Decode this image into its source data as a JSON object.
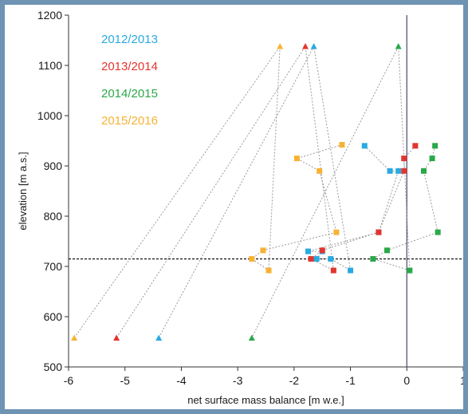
{
  "chart_data": {
    "type": "line",
    "title": "",
    "xlabel": "net surface mass balance [m w.e.]",
    "ylabel": "elevation [m a.s.]",
    "xlim": [
      -6,
      1
    ],
    "ylim": [
      500,
      1200
    ],
    "xticks": [
      -6,
      -5,
      -4,
      -3,
      -2,
      -1,
      0,
      1
    ],
    "yticks": [
      500,
      600,
      700,
      800,
      900,
      1000,
      1100,
      1200
    ],
    "xtick_labels": [
      "-6",
      "-5",
      "-4",
      "-3",
      "-2",
      "-1",
      "0",
      "1"
    ],
    "ytick_labels": [
      "500",
      "600",
      "700",
      "800",
      "900",
      "1000",
      "1100",
      "1200"
    ],
    "grid": false,
    "legend_position": "top-left",
    "reference_lines": [
      {
        "orientation": "vertical",
        "value": 0,
        "style": "solid",
        "color": "#555577"
      },
      {
        "orientation": "horizontal",
        "value": 715,
        "style": "dashed",
        "color": "#222222"
      }
    ],
    "series": [
      {
        "name": "2012/2013",
        "color": "#29aae1",
        "points": [
          {
            "x": -0.75,
            "y": 940,
            "marker": "square"
          },
          {
            "x": -0.3,
            "y": 890,
            "marker": "square"
          },
          {
            "x": -0.15,
            "y": 890,
            "marker": "square"
          },
          {
            "x": -0.5,
            "y": 768,
            "marker": "square"
          },
          {
            "x": -1.75,
            "y": 730,
            "marker": "square"
          },
          {
            "x": -1.5,
            "y": 730,
            "marker": "square"
          },
          {
            "x": -1.6,
            "y": 715,
            "marker": "square"
          },
          {
            "x": -1.35,
            "y": 715,
            "marker": "square"
          },
          {
            "x": -1.0,
            "y": 692,
            "marker": "square"
          },
          {
            "x": -1.65,
            "y": 1138,
            "marker": "triangle"
          },
          {
            "x": -4.4,
            "y": 558,
            "marker": "triangle"
          }
        ]
      },
      {
        "name": "2013/2014",
        "color": "#e2352f",
        "points": [
          {
            "x": 0.15,
            "y": 940,
            "marker": "square"
          },
          {
            "x": -0.05,
            "y": 915,
            "marker": "square"
          },
          {
            "x": -0.05,
            "y": 890,
            "marker": "square"
          },
          {
            "x": -0.5,
            "y": 768,
            "marker": "square"
          },
          {
            "x": -1.5,
            "y": 732,
            "marker": "square"
          },
          {
            "x": -1.7,
            "y": 715,
            "marker": "square"
          },
          {
            "x": -1.3,
            "y": 692,
            "marker": "square"
          },
          {
            "x": -1.8,
            "y": 1138,
            "marker": "triangle"
          },
          {
            "x": -5.15,
            "y": 558,
            "marker": "triangle"
          }
        ]
      },
      {
        "name": "2014/2015",
        "color": "#2aa84a",
        "points": [
          {
            "x": 0.5,
            "y": 940,
            "marker": "square"
          },
          {
            "x": 0.45,
            "y": 915,
            "marker": "square"
          },
          {
            "x": 0.3,
            "y": 890,
            "marker": "square"
          },
          {
            "x": 0.55,
            "y": 768,
            "marker": "square"
          },
          {
            "x": -0.35,
            "y": 732,
            "marker": "square"
          },
          {
            "x": -0.6,
            "y": 715,
            "marker": "square"
          },
          {
            "x": 0.05,
            "y": 692,
            "marker": "square"
          },
          {
            "x": -0.15,
            "y": 1138,
            "marker": "triangle"
          },
          {
            "x": -2.75,
            "y": 558,
            "marker": "triangle"
          }
        ]
      },
      {
        "name": "2015/2016",
        "color": "#f7b234",
        "points": [
          {
            "x": -1.15,
            "y": 942,
            "marker": "square"
          },
          {
            "x": -1.95,
            "y": 915,
            "marker": "square"
          },
          {
            "x": -1.55,
            "y": 890,
            "marker": "square"
          },
          {
            "x": -1.25,
            "y": 768,
            "marker": "square"
          },
          {
            "x": -2.55,
            "y": 732,
            "marker": "square"
          },
          {
            "x": -2.75,
            "y": 715,
            "marker": "square"
          },
          {
            "x": -2.45,
            "y": 692,
            "marker": "square"
          },
          {
            "x": -2.25,
            "y": 1138,
            "marker": "triangle"
          },
          {
            "x": -5.9,
            "y": 558,
            "marker": "triangle"
          }
        ]
      }
    ]
  }
}
